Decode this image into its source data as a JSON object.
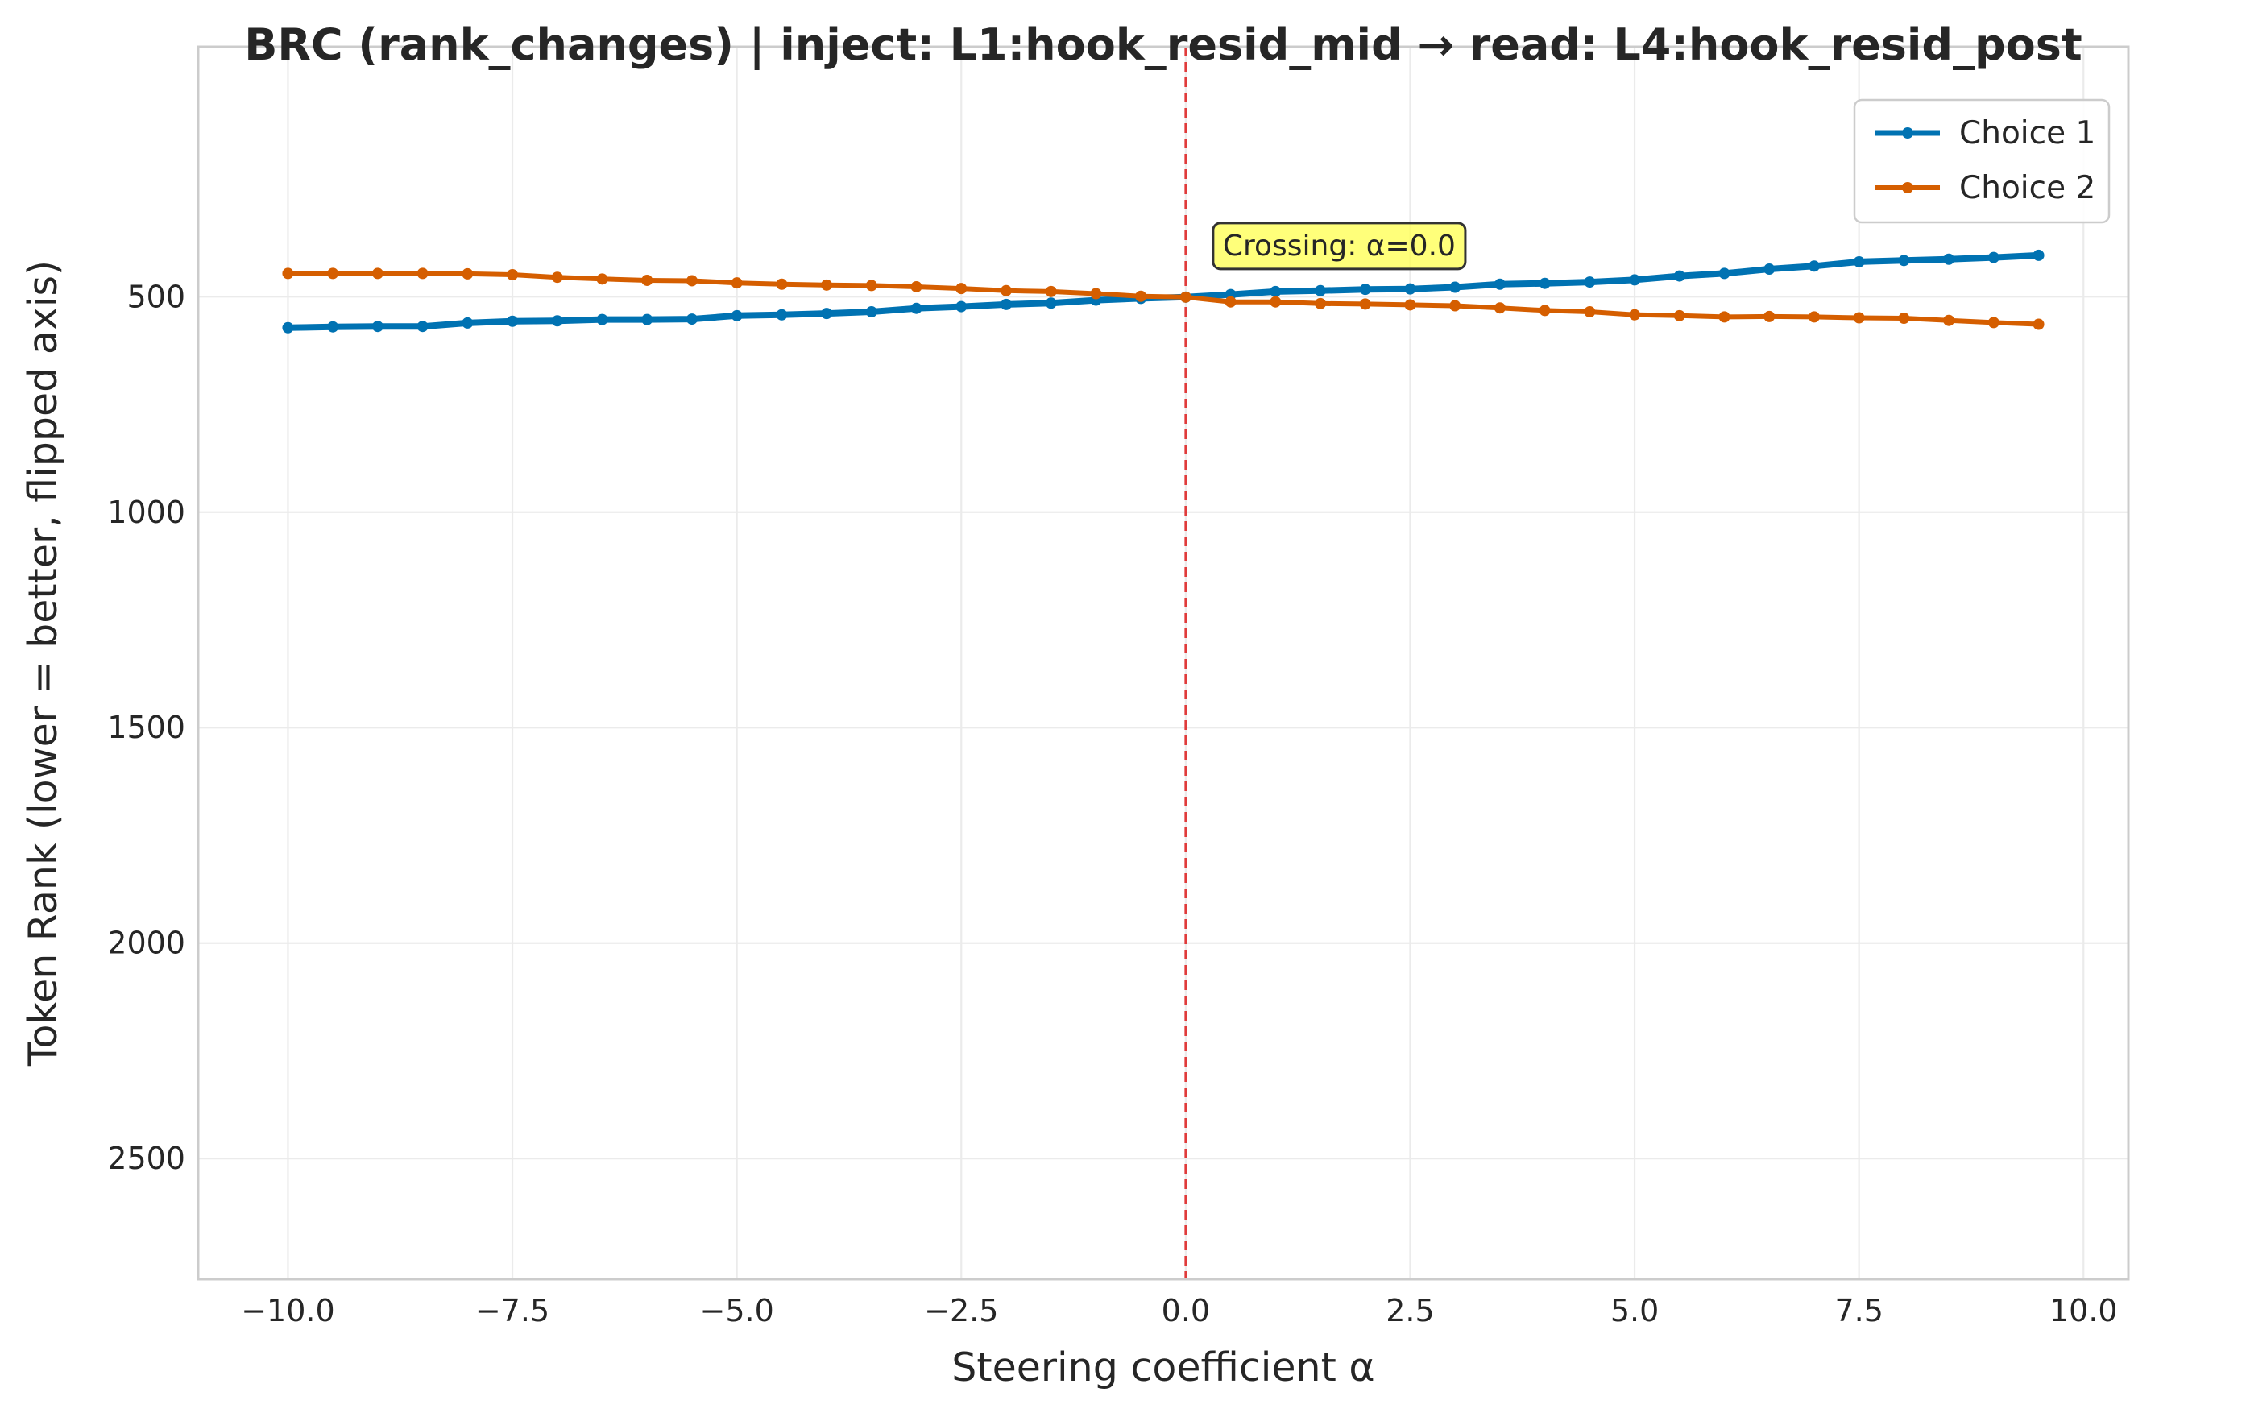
{
  "chart_data": {
    "type": "line",
    "title": "BRC (rank_changes) | inject: L1:hook_resid_mid → read: L4:hook_resid_post",
    "xlabel": "Steering coefficient α",
    "ylabel": "Token Rank (lower = better, flipped axis)",
    "xlim": [
      -11.0,
      10.5
    ],
    "ylim": [
      2780,
      -80
    ],
    "y_inverted": true,
    "grid": true,
    "legend_position": "top-right",
    "xticks": [
      -10.0,
      -7.5,
      -5.0,
      -2.5,
      0.0,
      2.5,
      5.0,
      7.5,
      10.0
    ],
    "xtick_labels": [
      "−10.0",
      "−7.5",
      "−5.0",
      "−2.5",
      "0.0",
      "2.5",
      "5.0",
      "7.5",
      "10.0"
    ],
    "yticks": [
      500,
      1000,
      1500,
      2000,
      2500
    ],
    "ytick_labels": [
      "500",
      "1000",
      "1500",
      "2000",
      "2500"
    ],
    "x": [
      -10.0,
      -9.5,
      -9.0,
      -8.5,
      -8.0,
      -7.5,
      -7.0,
      -6.5,
      -6.0,
      -5.5,
      -5.0,
      -4.5,
      -4.0,
      -3.5,
      -3.0,
      -2.5,
      -2.0,
      -1.5,
      -1.0,
      -0.5,
      0.0,
      0.5,
      1.0,
      1.5,
      2.0,
      2.5,
      3.0,
      3.5,
      4.0,
      4.5,
      5.0,
      5.5,
      6.0,
      6.5,
      7.0,
      7.5,
      8.0,
      8.5,
      9.0,
      9.5
    ],
    "series": [
      {
        "name": "Choice 1",
        "color": "#0072B2",
        "values": [
          572,
          570,
          569,
          569,
          561,
          557,
          556,
          553,
          553,
          552,
          544,
          542,
          539,
          535,
          527,
          523,
          518,
          515,
          508,
          504,
          501,
          495,
          488,
          486,
          483,
          482,
          478,
          471,
          469,
          466,
          461,
          452,
          446,
          436,
          429,
          419,
          416,
          413,
          409,
          404
        ]
      },
      {
        "name": "Choice 2",
        "color": "#D55E00",
        "values": [
          446,
          446,
          446,
          446,
          447,
          449,
          455,
          459,
          462,
          463,
          468,
          471,
          473,
          474,
          477,
          481,
          486,
          488,
          493,
          499,
          501,
          512,
          512,
          516,
          517,
          519,
          521,
          526,
          532,
          535,
          542,
          544,
          547,
          546,
          547,
          549,
          550,
          555,
          560,
          564
        ]
      }
    ],
    "vline": {
      "x": 0.0,
      "color": "#e03b3b"
    },
    "annotation": {
      "text": "Crossing: α=0.0",
      "x": 0.0,
      "y": 501,
      "background": "#ffff4d"
    }
  }
}
